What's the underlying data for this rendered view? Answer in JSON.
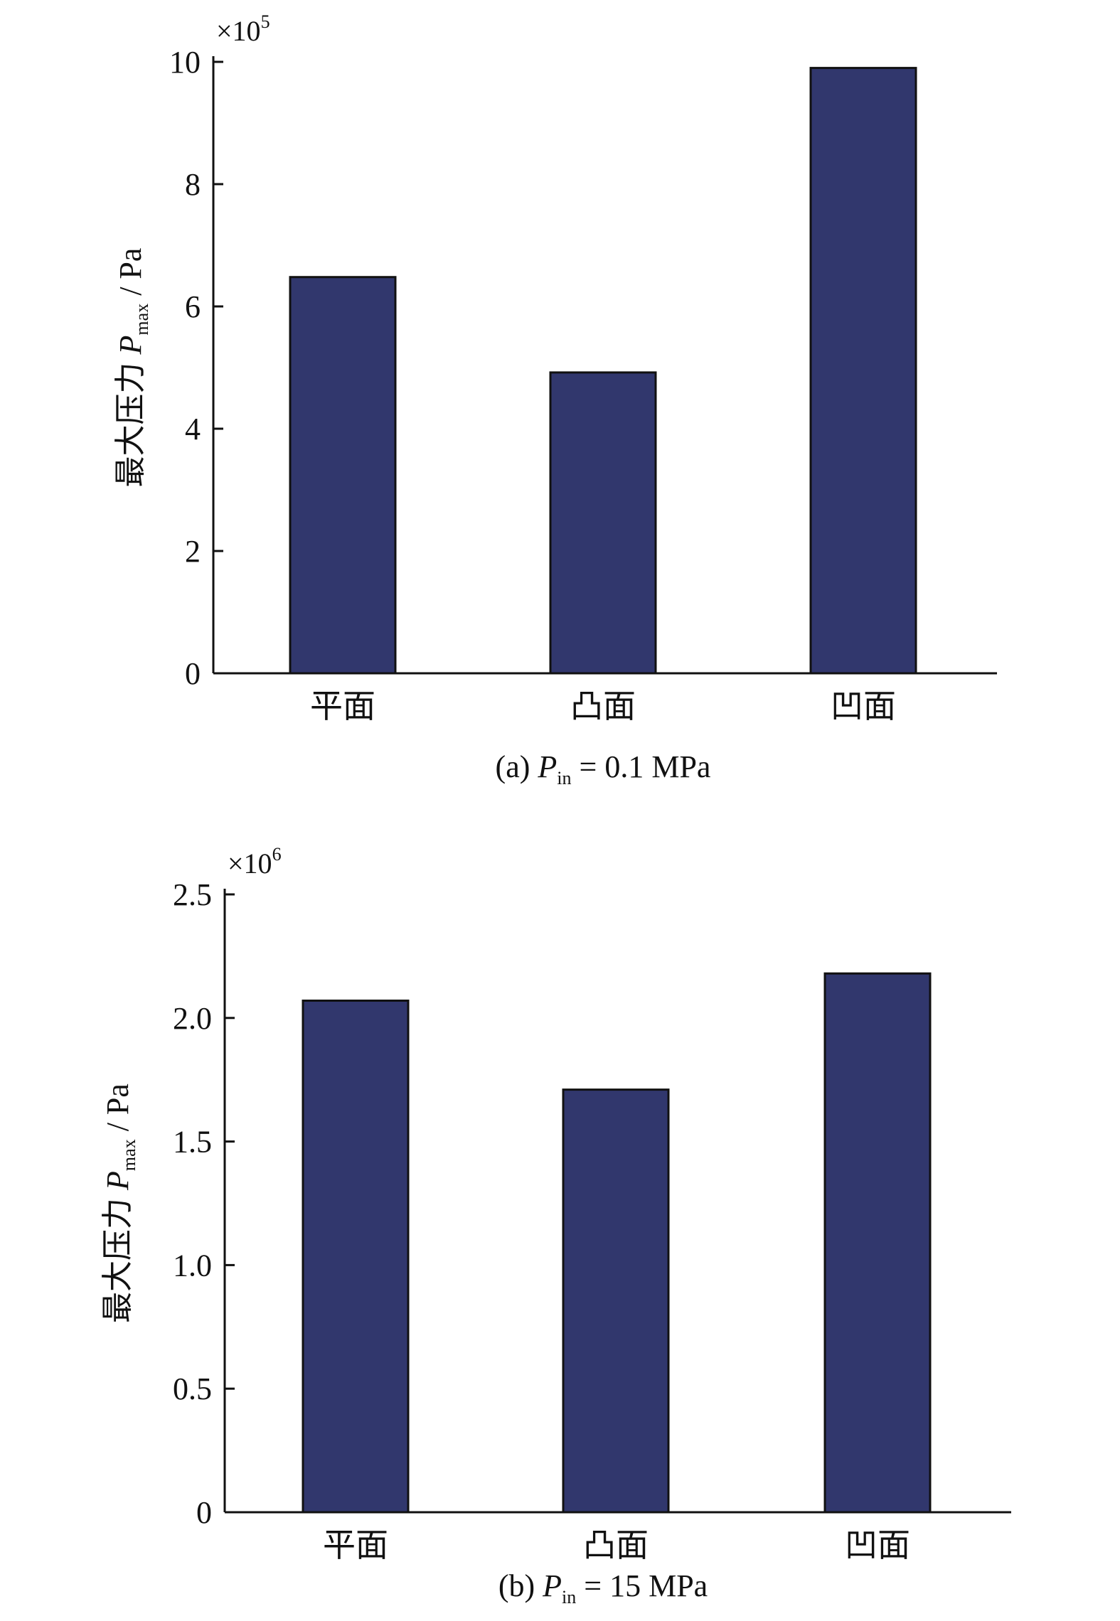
{
  "colors": {
    "bar_fill": "#31376d",
    "axis": "#111111"
  },
  "chart_data": [
    {
      "type": "bar",
      "panel": "a",
      "categories": [
        "平面",
        "凸面",
        "凹面"
      ],
      "values": [
        6.48,
        4.92,
        9.9
      ],
      "multiplier": {
        "prefix": "×10",
        "exponent": "5"
      },
      "ylabel": {
        "prefix": "最大压力 ",
        "var": "P",
        "sub": "max",
        "suffix": " / Pa"
      },
      "caption": {
        "prefix": "(a) ",
        "var": "P",
        "sub": "in",
        "suffix": " = 0.1 MPa"
      },
      "ylim": [
        0,
        10
      ],
      "yticks": [
        0,
        2,
        4,
        6,
        8,
        10
      ],
      "ytick_labels": [
        "0",
        "2",
        "4",
        "6",
        "8",
        "10"
      ],
      "grid": false,
      "legend": "none"
    },
    {
      "type": "bar",
      "panel": "b",
      "categories": [
        "平面",
        "凸面",
        "凹面"
      ],
      "values": [
        2.07,
        1.71,
        2.18
      ],
      "multiplier": {
        "prefix": "×10",
        "exponent": "6"
      },
      "ylabel": {
        "prefix": "最大压力 ",
        "var": "P",
        "sub": "max",
        "suffix": " / Pa"
      },
      "caption": {
        "prefix": "(b) ",
        "var": "P",
        "sub": "in",
        "suffix": " = 15 MPa"
      },
      "ylim": [
        0,
        2.5
      ],
      "yticks": [
        0,
        0.5,
        1.0,
        1.5,
        2.0,
        2.5
      ],
      "ytick_labels": [
        "0",
        "0.5",
        "1.0",
        "1.5",
        "2.0",
        "2.5"
      ],
      "grid": false,
      "legend": "none"
    }
  ]
}
